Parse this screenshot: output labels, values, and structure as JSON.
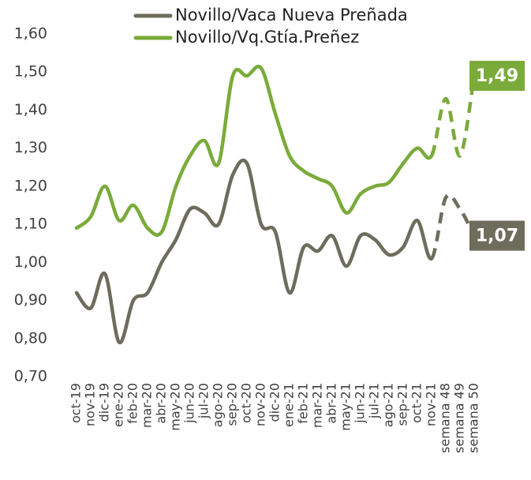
{
  "chart_data": {
    "type": "line",
    "categories": [
      "oct-19",
      "nov-19",
      "dic-19",
      "ene-20",
      "feb-20",
      "mar-20",
      "abr-20",
      "may-20",
      "jun-20",
      "jul-20",
      "ago-20",
      "sep-20",
      "oct-20",
      "nov-20",
      "dic-20",
      "ene-21",
      "feb-21",
      "mar-21",
      "abr-21",
      "may-21",
      "jun-21",
      "jul-21",
      "ago-21",
      "sep-21",
      "oct-21",
      "nov-21",
      "semana 48",
      "semana 49",
      "semana 50"
    ],
    "series": [
      {
        "name": "Novillo/Vaca Nueva Preñada",
        "color": "#6e6c5c",
        "values": [
          0.92,
          0.88,
          0.97,
          0.79,
          0.9,
          0.92,
          1.0,
          1.06,
          1.14,
          1.13,
          1.1,
          1.23,
          1.26,
          1.1,
          1.08,
          0.92,
          1.04,
          1.03,
          1.07,
          0.99,
          1.07,
          1.06,
          1.02,
          1.04,
          1.11,
          1.01,
          1.17,
          1.14,
          1.07
        ],
        "value_labels": [
          null,
          null,
          null,
          null,
          null,
          null,
          null,
          null,
          null,
          null,
          null,
          null,
          null,
          null,
          null,
          null,
          null,
          null,
          null,
          null,
          null,
          null,
          null,
          null,
          null,
          null,
          null,
          null,
          "1,07"
        ]
      },
      {
        "name": "Novillo/Vq.Gtía.Preñez",
        "color": "#7aab3a",
        "values": [
          1.09,
          1.12,
          1.2,
          1.11,
          1.15,
          1.09,
          1.08,
          1.2,
          1.28,
          1.32,
          1.26,
          1.49,
          1.49,
          1.51,
          1.39,
          1.28,
          1.24,
          1.22,
          1.2,
          1.13,
          1.18,
          1.2,
          1.21,
          1.26,
          1.3,
          1.28,
          1.43,
          1.28,
          1.49
        ],
        "value_labels": [
          null,
          null,
          null,
          null,
          null,
          null,
          null,
          null,
          null,
          null,
          null,
          null,
          null,
          null,
          null,
          null,
          null,
          null,
          null,
          null,
          null,
          null,
          null,
          null,
          null,
          null,
          null,
          null,
          "1,49"
        ]
      }
    ],
    "dash_from": 25,
    "ylim": [
      0.7,
      1.6
    ],
    "yticks": [
      {
        "value": 0.7,
        "label": "0,70"
      },
      {
        "value": 0.8,
        "label": "0,80"
      },
      {
        "value": 0.9,
        "label": "0,90"
      },
      {
        "value": 1.0,
        "label": "1,00"
      },
      {
        "value": 1.1,
        "label": "1,10"
      },
      {
        "value": 1.2,
        "label": "1,20"
      },
      {
        "value": 1.3,
        "label": "1,30"
      },
      {
        "value": 1.4,
        "label": "1,40"
      },
      {
        "value": 1.5,
        "label": "1,50"
      },
      {
        "value": 1.6,
        "label": "1,60"
      }
    ],
    "grid": false,
    "legend": "top"
  }
}
